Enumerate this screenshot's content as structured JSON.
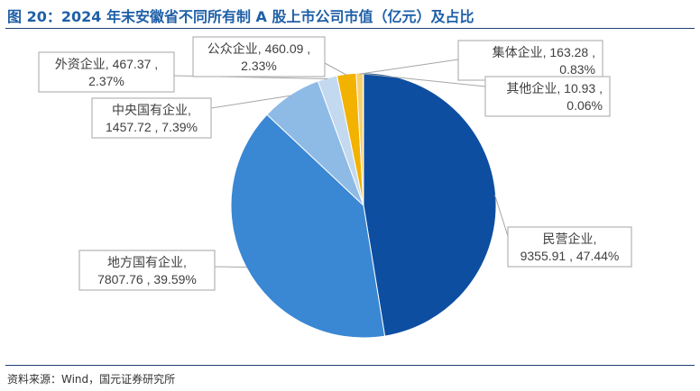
{
  "header": {
    "title": "图 20：2024 年末安徽省不同所有制 A 股上市公司市值（亿元）及占比"
  },
  "footer": {
    "source": "资料来源：Wind，国元证券研究所"
  },
  "chart_data": {
    "type": "pie",
    "title": "图 20：2024 年末安徽省不同所有制 A 股上市公司市值（亿元）及占比",
    "unit": "亿元",
    "slices": [
      {
        "category": "民营企业",
        "value": 9355.91,
        "percent": "47.44%",
        "color": "#0d4ea1"
      },
      {
        "category": "地方国有企业",
        "value": 7807.76,
        "percent": "39.59%",
        "color": "#3a87d3"
      },
      {
        "category": "中央国有企业",
        "value": 1457.72,
        "percent": "7.39%",
        "color": "#8ebae6"
      },
      {
        "category": "外资企业",
        "value": 467.37,
        "percent": "2.37%",
        "color": "#c3d9ef"
      },
      {
        "category": "公众企业",
        "value": 460.09,
        "percent": "2.33%",
        "color": "#f3b100"
      },
      {
        "category": "集体企业",
        "value": 163.28,
        "percent": "0.83%",
        "color": "#f6cf6e"
      },
      {
        "category": "其他企业",
        "value": 10.93,
        "percent": "0.06%",
        "color": "#8b99ac"
      }
    ],
    "labels": [
      {
        "line1": "民营企业,",
        "line2": "9355.91 , 47.44%"
      },
      {
        "line1": "地方国有企业,",
        "line2": "7807.76 , 39.59%"
      },
      {
        "line1": "中央国有企业,",
        "line2": "1457.72 , 7.39%"
      },
      {
        "line1": "外资企业, 467.37 ,",
        "line2": "2.37%"
      },
      {
        "line1": "公众企业, 460.09 ,",
        "line2": "2.33%"
      },
      {
        "line1": "集体企业, 163.28 ,",
        "line2": "0.83%"
      },
      {
        "line1": "其他企业, 10.93 ,",
        "line2": "0.06%"
      }
    ]
  }
}
